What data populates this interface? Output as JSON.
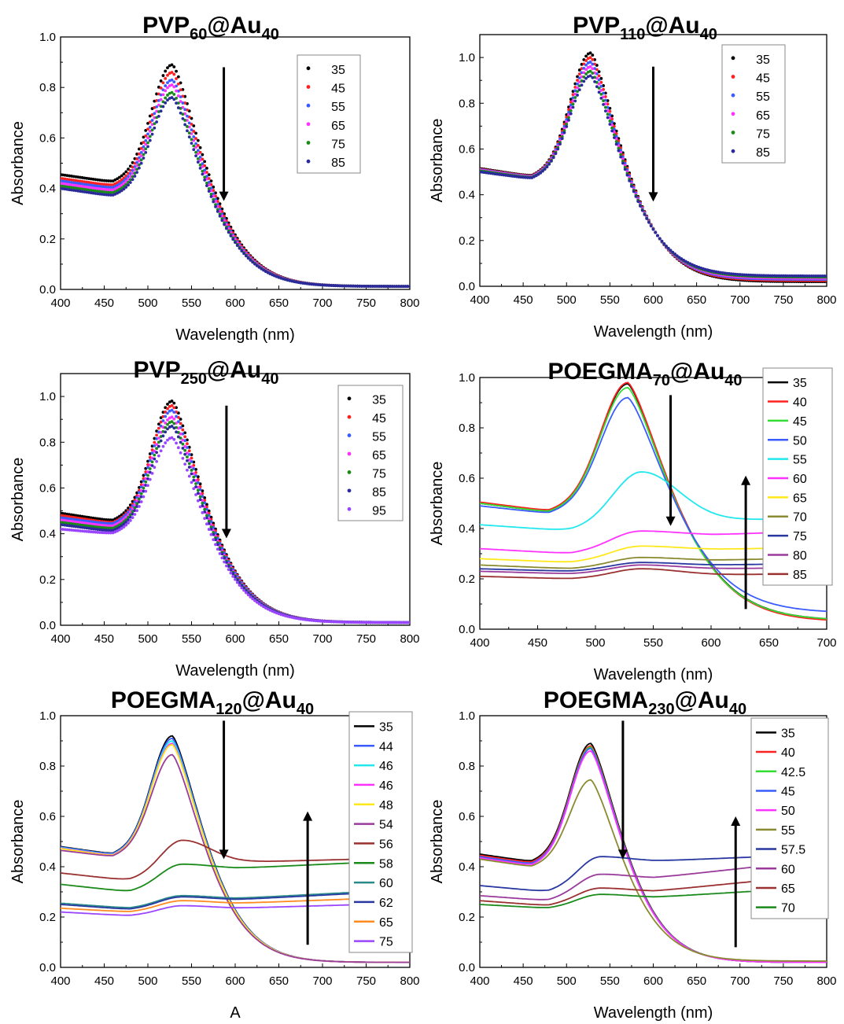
{
  "colors": {
    "black": "#000000",
    "red": "#ff2020",
    "blue": "#3a5cff",
    "magenta": "#ff33ff",
    "green": "#1a8a1a",
    "navy": "#2a2a9a",
    "violet": "#9a45ff",
    "lime": "#33dd33",
    "cyan": "#22e8ee",
    "yellow": "#ffe81a",
    "olive": "#8a8a30",
    "darkblue": "#2838a0",
    "purple": "#9a3a9a",
    "brown": "#9a3030",
    "teal": "#2a8a8a",
    "orange": "#ff8a20"
  },
  "chart_data": [
    {
      "id": "p1",
      "type": "scatter",
      "title_main": "PVP",
      "title_sub": "60",
      "title_mid": "@Au",
      "title_sub2": "40",
      "xlabel": "Wavelength (nm)",
      "ylabel": "Absorbance",
      "xlim": [
        400,
        800
      ],
      "ylim": [
        0,
        1.0
      ],
      "xticks": [
        400,
        450,
        500,
        550,
        600,
        650,
        700,
        750,
        800
      ],
      "yticks": [
        0.0,
        0.2,
        0.4,
        0.6,
        0.8,
        1.0
      ],
      "legend_position": "top-right",
      "marker": "dot",
      "arrows": [
        {
          "x": 587,
          "y_from": 0.88,
          "y_to": 0.35
        }
      ],
      "series": [
        {
          "name": "35",
          "color": "black",
          "peak": 0.89,
          "base": 0.455,
          "trough": 0.425,
          "tail": 0.012
        },
        {
          "name": "45",
          "color": "red",
          "peak": 0.86,
          "base": 0.44,
          "trough": 0.41,
          "tail": 0.012
        },
        {
          "name": "55",
          "color": "blue",
          "peak": 0.83,
          "base": 0.43,
          "trough": 0.4,
          "tail": 0.012
        },
        {
          "name": "65",
          "color": "magenta",
          "peak": 0.81,
          "base": 0.42,
          "trough": 0.39,
          "tail": 0.012
        },
        {
          "name": "75",
          "color": "green",
          "peak": 0.78,
          "base": 0.41,
          "trough": 0.38,
          "tail": 0.012
        },
        {
          "name": "85",
          "color": "navy",
          "peak": 0.76,
          "base": 0.4,
          "trough": 0.37,
          "tail": 0.012
        }
      ]
    },
    {
      "id": "p2",
      "type": "scatter",
      "title_main": "PVP",
      "title_sub": "110",
      "title_mid": "@Au",
      "title_sub2": "40",
      "xlabel": "Wavelength (nm)",
      "ylabel": "Absorbance",
      "xlim": [
        400,
        800
      ],
      "ylim": [
        0,
        1.1
      ],
      "xticks": [
        400,
        450,
        500,
        550,
        600,
        650,
        700,
        750,
        800
      ],
      "yticks": [
        0.0,
        0.2,
        0.4,
        0.6,
        0.8,
        1.0
      ],
      "legend_position": "top-right",
      "marker": "dot",
      "arrows": [
        {
          "x": 600,
          "y_from": 0.96,
          "y_to": 0.37
        }
      ],
      "series": [
        {
          "name": "35",
          "color": "black",
          "peak": 1.02,
          "base": 0.515,
          "trough": 0.48,
          "tail": 0.02
        },
        {
          "name": "45",
          "color": "red",
          "peak": 1.0,
          "base": 0.512,
          "trough": 0.478,
          "tail": 0.025
        },
        {
          "name": "55",
          "color": "blue",
          "peak": 0.98,
          "base": 0.51,
          "trough": 0.476,
          "tail": 0.03
        },
        {
          "name": "65",
          "color": "magenta",
          "peak": 0.96,
          "base": 0.508,
          "trough": 0.474,
          "tail": 0.035
        },
        {
          "name": "75",
          "color": "green",
          "peak": 0.94,
          "base": 0.505,
          "trough": 0.472,
          "tail": 0.04
        },
        {
          "name": "85",
          "color": "navy",
          "peak": 0.92,
          "base": 0.5,
          "trough": 0.47,
          "tail": 0.045
        }
      ]
    },
    {
      "id": "p3",
      "type": "scatter",
      "title_main": "PVP",
      "title_sub": "250",
      "title_mid": "@Au",
      "title_sub2": "40",
      "xlabel": "Wavelength (nm)",
      "ylabel": "Absorbance",
      "xlim": [
        400,
        800
      ],
      "ylim": [
        0,
        1.1
      ],
      "xticks": [
        400,
        450,
        500,
        550,
        600,
        650,
        700,
        750,
        800
      ],
      "yticks": [
        0.0,
        0.2,
        0.4,
        0.6,
        0.8,
        1.0
      ],
      "legend_position": "top-right",
      "marker": "dot",
      "arrows": [
        {
          "x": 590,
          "y_from": 0.96,
          "y_to": 0.38
        }
      ],
      "series": [
        {
          "name": "35",
          "color": "black",
          "peak": 0.98,
          "base": 0.49,
          "trough": 0.455,
          "tail": 0.012
        },
        {
          "name": "45",
          "color": "red",
          "peak": 0.96,
          "base": 0.48,
          "trough": 0.445,
          "tail": 0.012
        },
        {
          "name": "55",
          "color": "blue",
          "peak": 0.94,
          "base": 0.47,
          "trough": 0.44,
          "tail": 0.012
        },
        {
          "name": "65",
          "color": "magenta",
          "peak": 0.91,
          "base": 0.46,
          "trough": 0.43,
          "tail": 0.012
        },
        {
          "name": "75",
          "color": "green",
          "peak": 0.89,
          "base": 0.45,
          "trough": 0.42,
          "tail": 0.012
        },
        {
          "name": "85",
          "color": "navy",
          "peak": 0.87,
          "base": 0.44,
          "trough": 0.41,
          "tail": 0.012
        },
        {
          "name": "95",
          "color": "violet",
          "peak": 0.82,
          "base": 0.42,
          "trough": 0.4,
          "tail": 0.012
        }
      ]
    },
    {
      "id": "p4",
      "type": "line",
      "title_main": "POEGMA",
      "title_sub": "70",
      "title_mid": "@Au",
      "title_sub2": "40",
      "xlabel": "Wavelength (nm)",
      "ylabel": "Absorbance",
      "xlim": [
        400,
        700
      ],
      "ylim": [
        0,
        1.0
      ],
      "xticks": [
        400,
        450,
        500,
        550,
        600,
        650,
        700
      ],
      "yticks": [
        0.0,
        0.2,
        0.4,
        0.6,
        0.8,
        1.0
      ],
      "legend_position": "top-right",
      "marker": "line",
      "arrows": [
        {
          "x": 565,
          "y_from": 0.93,
          "y_to": 0.41
        },
        {
          "x": 630,
          "y_from": 0.08,
          "y_to": 0.61
        }
      ],
      "series": [
        {
          "name": "35",
          "color": "black",
          "peak": 0.975,
          "base": 0.5,
          "trough": 0.465,
          "tail": 0.035
        },
        {
          "name": "40",
          "color": "red",
          "peak": 0.98,
          "base": 0.505,
          "trough": 0.47,
          "tail": 0.03
        },
        {
          "name": "45",
          "color": "lime",
          "peak": 0.96,
          "base": 0.5,
          "trough": 0.465,
          "tail": 0.035
        },
        {
          "name": "50",
          "color": "blue",
          "peak": 0.92,
          "base": 0.49,
          "trough": 0.46,
          "tail": 0.065
        },
        {
          "name": "55",
          "color": "cyan",
          "peak": 0.625,
          "base": 0.415,
          "trough": 0.39,
          "tail": 0.45,
          "broad": true
        },
        {
          "name": "60",
          "color": "magenta",
          "peak": 0.39,
          "base": 0.32,
          "trough": 0.3,
          "tail": 0.41,
          "broad": true
        },
        {
          "name": "65",
          "color": "yellow",
          "peak": 0.33,
          "base": 0.28,
          "trough": 0.265,
          "tail": 0.335,
          "broad": true
        },
        {
          "name": "70",
          "color": "olive",
          "peak": 0.285,
          "base": 0.255,
          "trough": 0.24,
          "tail": 0.295,
          "broad": true
        },
        {
          "name": "75",
          "color": "darkblue",
          "peak": 0.265,
          "base": 0.24,
          "trough": 0.23,
          "tail": 0.27,
          "broad": true
        },
        {
          "name": "80",
          "color": "purple",
          "peak": 0.255,
          "base": 0.23,
          "trough": 0.22,
          "tail": 0.25,
          "broad": true
        },
        {
          "name": "85",
          "color": "brown",
          "peak": 0.24,
          "base": 0.21,
          "trough": 0.2,
          "tail": 0.225,
          "broad": true
        }
      ]
    },
    {
      "id": "p5",
      "type": "line",
      "title_main": "POEGMA",
      "title_sub": "120",
      "title_mid": "@Au",
      "title_sub2": "40",
      "xlabel": "A",
      "ylabel": "Absorbance",
      "xlim": [
        400,
        800
      ],
      "ylim": [
        0,
        1.0
      ],
      "xticks": [
        400,
        450,
        500,
        550,
        600,
        650,
        700,
        750,
        800
      ],
      "yticks": [
        0.0,
        0.2,
        0.4,
        0.6,
        0.8,
        1.0
      ],
      "legend_position": "top-right",
      "marker": "line",
      "arrows": [
        {
          "x": 587,
          "y_from": 0.98,
          "y_to": 0.43
        },
        {
          "x": 683,
          "y_from": 0.09,
          "y_to": 0.62
        }
      ],
      "series": [
        {
          "name": "35",
          "color": "black",
          "peak": 0.92,
          "base": 0.48,
          "trough": 0.45,
          "tail": 0.02
        },
        {
          "name": "44",
          "color": "blue",
          "peak": 0.91,
          "base": 0.478,
          "trough": 0.448,
          "tail": 0.02
        },
        {
          "name": "46",
          "color": "cyan",
          "peak": 0.9,
          "base": 0.476,
          "trough": 0.446,
          "tail": 0.02
        },
        {
          "name": "46",
          "color": "magenta",
          "peak": 0.89,
          "base": 0.474,
          "trough": 0.444,
          "tail": 0.02
        },
        {
          "name": "48",
          "color": "yellow",
          "peak": 0.885,
          "base": 0.472,
          "trough": 0.442,
          "tail": 0.02
        },
        {
          "name": "54",
          "color": "purple",
          "peak": 0.845,
          "base": 0.465,
          "trough": 0.44,
          "tail": 0.02
        },
        {
          "name": "56",
          "color": "brown",
          "peak": 0.505,
          "base": 0.375,
          "trough": 0.345,
          "tail": 0.435,
          "broad": true
        },
        {
          "name": "58",
          "color": "green",
          "peak": 0.41,
          "base": 0.33,
          "trough": 0.3,
          "tail": 0.425,
          "broad": true
        },
        {
          "name": "60",
          "color": "teal",
          "peak": 0.285,
          "base": 0.255,
          "trough": 0.235,
          "tail": 0.31,
          "broad": true
        },
        {
          "name": "62",
          "color": "darkblue",
          "peak": 0.28,
          "base": 0.25,
          "trough": 0.23,
          "tail": 0.305,
          "broad": true
        },
        {
          "name": "65",
          "color": "orange",
          "peak": 0.265,
          "base": 0.235,
          "trough": 0.22,
          "tail": 0.28,
          "broad": true
        },
        {
          "name": "75",
          "color": "violet",
          "peak": 0.245,
          "base": 0.22,
          "trough": 0.205,
          "tail": 0.255,
          "broad": true
        }
      ]
    },
    {
      "id": "p6",
      "type": "line",
      "title_main": "POEGMA",
      "title_sub": "230",
      "title_mid": "@Au",
      "title_sub2": "40",
      "xlabel": "Wavelength (nm)",
      "ylabel": "Absorbance",
      "xlim": [
        400,
        800
      ],
      "ylim": [
        0,
        1.0
      ],
      "xticks": [
        400,
        450,
        500,
        550,
        600,
        650,
        700,
        750,
        800
      ],
      "yticks": [
        0.0,
        0.2,
        0.4,
        0.6,
        0.8,
        1.0
      ],
      "legend_position": "top-right",
      "marker": "line",
      "arrows": [
        {
          "x": 565,
          "y_from": 0.98,
          "y_to": 0.43
        },
        {
          "x": 695,
          "y_from": 0.08,
          "y_to": 0.6
        }
      ],
      "series": [
        {
          "name": "35",
          "color": "black",
          "peak": 0.89,
          "base": 0.45,
          "trough": 0.42,
          "tail": 0.02
        },
        {
          "name": "40",
          "color": "red",
          "peak": 0.88,
          "base": 0.445,
          "trough": 0.415,
          "tail": 0.02
        },
        {
          "name": "42.5",
          "color": "lime",
          "peak": 0.875,
          "base": 0.44,
          "trough": 0.41,
          "tail": 0.02
        },
        {
          "name": "45",
          "color": "blue",
          "peak": 0.87,
          "base": 0.44,
          "trough": 0.41,
          "tail": 0.02
        },
        {
          "name": "50",
          "color": "magenta",
          "peak": 0.86,
          "base": 0.435,
          "trough": 0.405,
          "tail": 0.02
        },
        {
          "name": "55",
          "color": "olive",
          "peak": 0.745,
          "base": 0.43,
          "trough": 0.4,
          "tail": 0.025
        },
        {
          "name": "57.5",
          "color": "darkblue",
          "peak": 0.44,
          "base": 0.325,
          "trough": 0.3,
          "tail": 0.45,
          "broad": true
        },
        {
          "name": "60",
          "color": "purple",
          "peak": 0.37,
          "base": 0.285,
          "trough": 0.265,
          "tail": 0.43,
          "broad": true
        },
        {
          "name": "65",
          "color": "brown",
          "peak": 0.315,
          "base": 0.265,
          "trough": 0.245,
          "tail": 0.37,
          "broad": true
        },
        {
          "name": "70",
          "color": "green",
          "peak": 0.29,
          "base": 0.25,
          "trough": 0.235,
          "tail": 0.32,
          "broad": true
        }
      ]
    }
  ]
}
